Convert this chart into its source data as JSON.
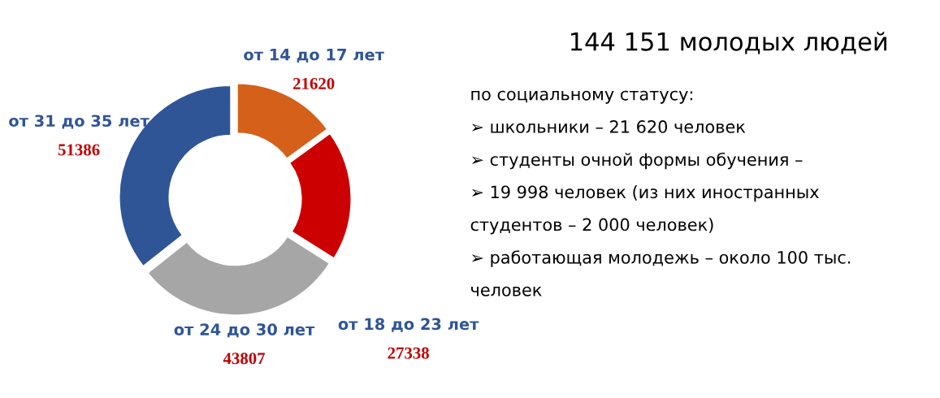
{
  "chart_data": [
    {
      "type": "donut",
      "categories": [
        "от 14 до 17 лет",
        "от 18 до 23 лет",
        "от 24 до 30 лет",
        "от 31 до 35 лет"
      ],
      "values": [
        21620,
        27338,
        43807,
        51386
      ],
      "colors": [
        "#d4601a",
        "#cc0000",
        "#a6a6a6",
        "#2f5597"
      ],
      "data_labels": true
    },
    {
      "type": "other",
      "title": "144 151 молодых людей",
      "annotations": [
        "по социальному статусу:",
        "➢ школьники – 21 620 человек",
        "➢ студенты очной формы обучения –",
        "➢ 19 998 человек (из них иностранных",
        "студентов – 2 000 человек)",
        "➢ работающая молодежь – около 100 тыс.",
        "человек"
      ]
    }
  ]
}
